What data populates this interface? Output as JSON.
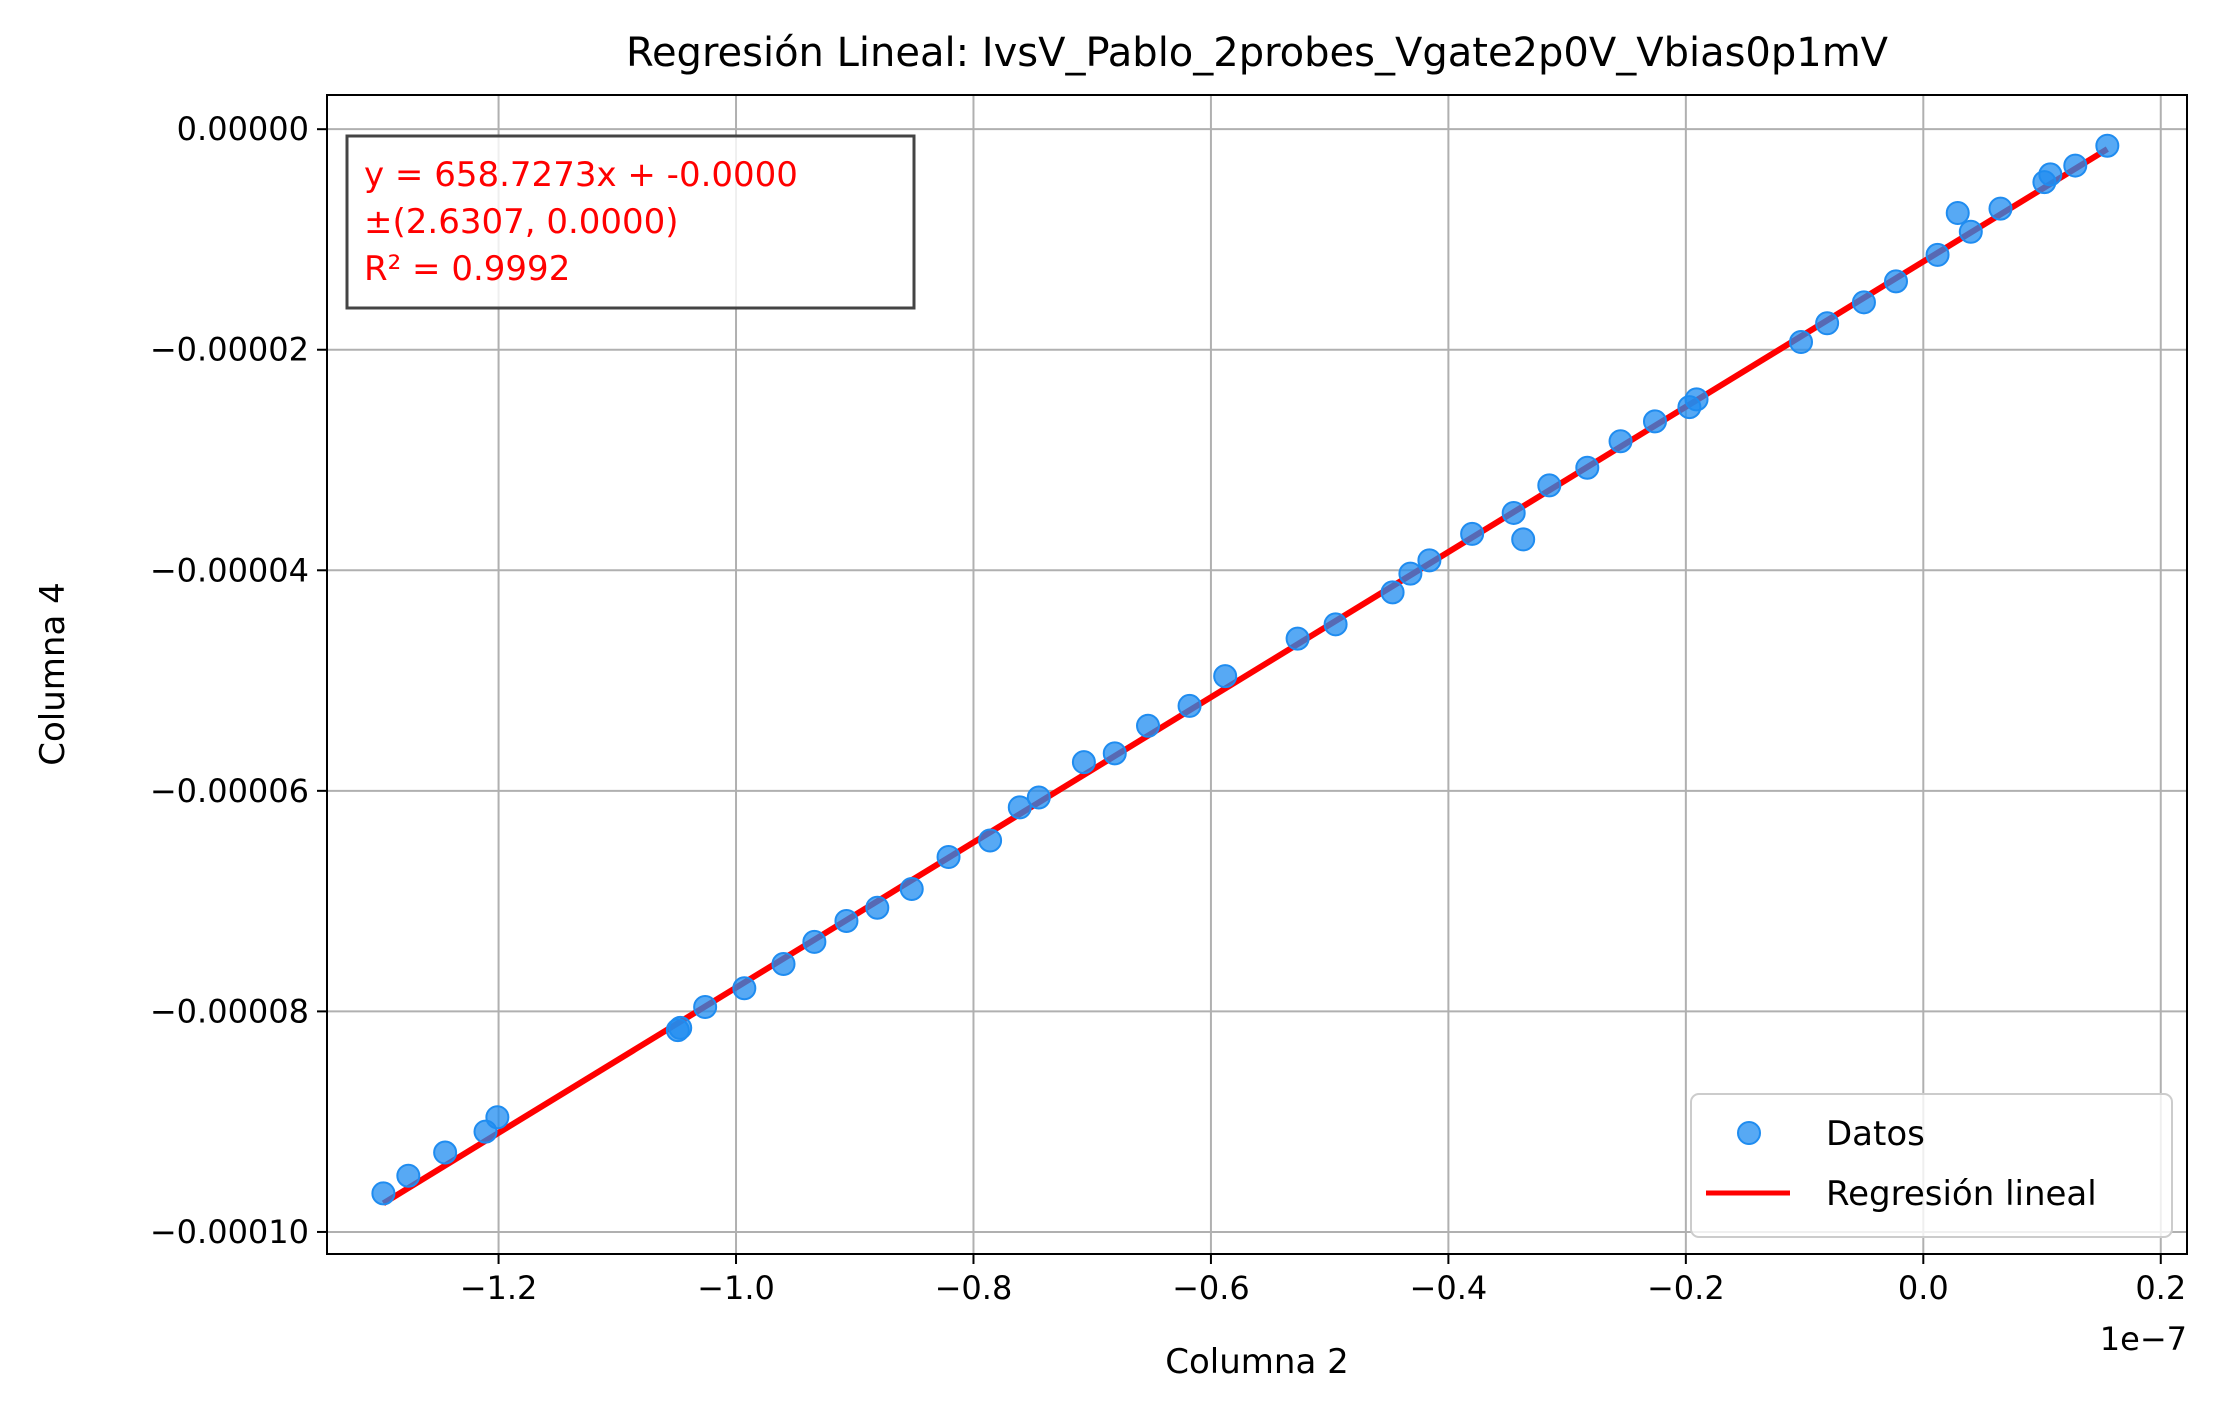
{
  "chart_data": {
    "type": "scatter",
    "title": "Regresión Lineal: IvsV_Pablo_2probes_Vgate2p0V_Vbias0p1mV",
    "xlabel": "Columna 2",
    "ylabel": "Columna 4",
    "x_offset_text": "1e−7",
    "x_multiplier": 1e-07,
    "xlim": [
      -1.3445,
      0.2221
    ],
    "ylim": [
      -0.000102,
      3.1e-06
    ],
    "xticks": [
      -1.2,
      -1.0,
      -0.8,
      -0.6,
      -0.4,
      -0.2,
      0.0,
      0.2
    ],
    "xtick_labels": [
      "−1.2",
      "−1.0",
      "−0.8",
      "−0.6",
      "−0.4",
      "−0.2",
      "0.0",
      "0.2"
    ],
    "yticks": [
      0,
      -2e-05,
      -4e-05,
      -6e-05,
      -8e-05,
      -0.0001
    ],
    "ytick_labels": [
      "0.00000",
      "−0.00002",
      "−0.00004",
      "−0.00006",
      "−0.00008",
      "−0.00010"
    ],
    "grid": true,
    "legend_position": "lower-right",
    "annotation_position": "top-left",
    "colors": {
      "points": "#1f8cf0",
      "line": "#ff0000",
      "annotation": "#ff0000"
    },
    "annotation": [
      "y = 658.7273x + -0.0000",
      "±(2.6307, 0.0000)",
      "R² = 0.9992"
    ],
    "series": [
      {
        "name": "Datos",
        "kind": "scatter",
        "x": [
          -1.297,
          -1.276,
          -1.245,
          -1.211,
          -1.201,
          -1.049,
          -1.047,
          -1.026,
          -0.993,
          -0.96,
          -0.934,
          -0.907,
          -0.881,
          -0.852,
          -0.821,
          -0.786,
          -0.761,
          -0.745,
          -0.707,
          -0.681,
          -0.653,
          -0.618,
          -0.588,
          -0.527,
          -0.495,
          -0.447,
          -0.432,
          -0.416,
          -0.38,
          -0.345,
          -0.337,
          -0.315,
          -0.283,
          -0.255,
          -0.226,
          -0.197,
          -0.191,
          -0.103,
          -0.081,
          -0.05,
          -0.023,
          0.012,
          0.029,
          0.04,
          0.065,
          0.102,
          0.107,
          0.128,
          0.155
        ],
        "y": [
          -9.65e-05,
          -9.49e-05,
          -9.28e-05,
          -9.09e-05,
          -8.96e-05,
          -8.17e-05,
          -8.15e-05,
          -7.96e-05,
          -7.79e-05,
          -7.57e-05,
          -7.37e-05,
          -7.18e-05,
          -7.06e-05,
          -6.89e-05,
          -6.6e-05,
          -6.45e-05,
          -6.15e-05,
          -6.06e-05,
          -5.74e-05,
          -5.66e-05,
          -5.41e-05,
          -5.23e-05,
          -4.96e-05,
          -4.62e-05,
          -4.49e-05,
          -4.2e-05,
          -4.03e-05,
          -3.91e-05,
          -3.67e-05,
          -3.48e-05,
          -3.72e-05,
          -3.23e-05,
          -3.07e-05,
          -2.83e-05,
          -2.65e-05,
          -2.52e-05,
          -2.45e-05,
          -1.93e-05,
          -1.76e-05,
          -1.57e-05,
          -1.38e-05,
          -1.14e-05,
          -7.6e-06,
          -9.3e-06,
          -7.2e-06,
          -4.8e-06,
          -4.1e-06,
          -3.3e-06,
          -1.5e-06
        ]
      },
      {
        "name": "Regresión lineal",
        "kind": "line",
        "x": [
          -1.297,
          0.155
        ],
        "y": [
          -9.74e-05,
          -1.8e-06
        ]
      }
    ]
  }
}
